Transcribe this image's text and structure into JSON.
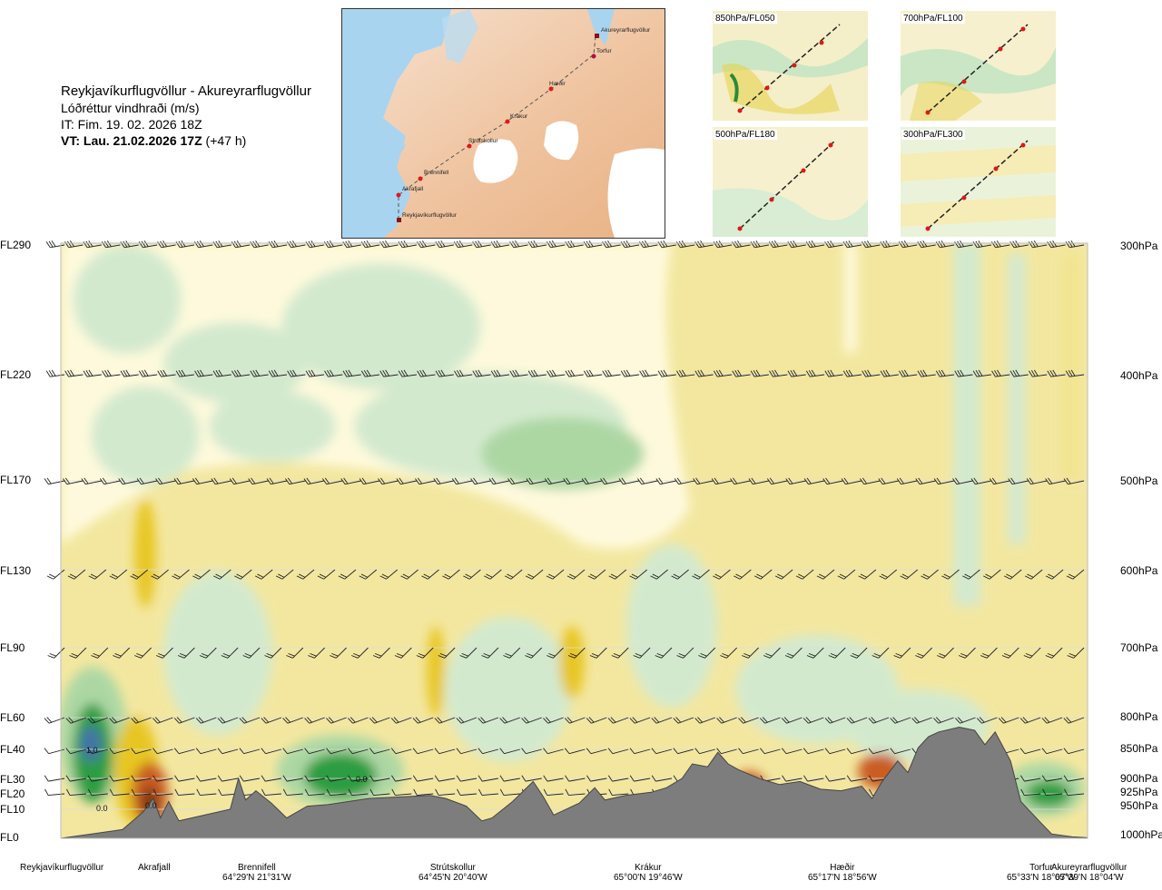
{
  "header": {
    "route": "Reykjavíkurflugvöllur - Akureyrarflugvöllur",
    "quantity": "Lóðréttur vindhraði (m/s)",
    "issue_time": "IT: Fim. 19. 02. 2026 18Z",
    "valid_time": "VT: Lau. 21.02.2026 17Z",
    "valid_offset": "(+47 h)"
  },
  "route_map": {
    "waypoints": [
      "Akureyrarflugvöllur",
      "Torfur",
      "Hæðir",
      "Krákur",
      "Strútskollur",
      "Brennifell",
      "Akrafjall",
      "Reykjavíkurflugvöllur"
    ]
  },
  "thumbnails": [
    {
      "label": "850hPa/FL050"
    },
    {
      "label": "700hPa/FL100"
    },
    {
      "label": "500hPa/FL180"
    },
    {
      "label": "300hPa/FL300"
    }
  ],
  "colors": {
    "strong_down": "#7a2e0e",
    "down_2": "#c7561c",
    "down_1": "#e7c51f",
    "down_weak": "#f0e48f",
    "neutral": "#fffbe0",
    "up_weak": "#d2ead1",
    "up_1": "#a9d7a4",
    "up_2": "#249a3c",
    "up_strong": "#3a6ea8",
    "terrain": "#7d7d7d"
  },
  "chart_data": {
    "type": "heatmap",
    "title": "Lóðréttur vindhraði (m/s)",
    "xlabel": "",
    "ylabel": "",
    "y_levels_left": [
      "FL290",
      "FL220",
      "FL170",
      "FL130",
      "FL90",
      "FL60",
      "FL40",
      "FL30",
      "FL20",
      "FL10",
      "FL0"
    ],
    "y_levels_right": [
      "300hPa",
      "400hPa",
      "500hPa",
      "600hPa",
      "700hPa",
      "800hPa",
      "850hPa",
      "900hPa",
      "925hPa",
      "950hPa",
      "1000hPa"
    ],
    "x_locations": [
      {
        "name": "Reykjavíkurflugvöllur",
        "coord": "",
        "x": 0.0
      },
      {
        "name": "Akrafjall",
        "coord": "",
        "x": 0.089
      },
      {
        "name": "Brennifell",
        "coord": "64°29'N 21°31'W",
        "x": 0.185
      },
      {
        "name": "Strútskollur",
        "coord": "64°45'N 20°40'W",
        "x": 0.379
      },
      {
        "name": "Krákur",
        "coord": "65°00'N 19°46'W",
        "x": 0.577
      },
      {
        "name": "Hæðir",
        "coord": "65°17'N 18°56'W",
        "x": 0.766
      },
      {
        "name": "Torfur",
        "coord": "65°33'N 18°07'W",
        "x": 0.935
      },
      {
        "name": "Akureyrarflugvöllur",
        "coord": "65°39'N 18°04'W",
        "x": 1.0
      }
    ],
    "annotations": [
      "1.0",
      "0.0",
      "0.0",
      "0.0"
    ],
    "terrain_profile_ft": [
      [
        0.0,
        0
      ],
      [
        0.03,
        150
      ],
      [
        0.06,
        300
      ],
      [
        0.08,
        900
      ],
      [
        0.09,
        1700
      ],
      [
        0.097,
        700
      ],
      [
        0.105,
        1500
      ],
      [
        0.115,
        600
      ],
      [
        0.14,
        800
      ],
      [
        0.165,
        1000
      ],
      [
        0.173,
        3000
      ],
      [
        0.18,
        1600
      ],
      [
        0.19,
        2200
      ],
      [
        0.205,
        1400
      ],
      [
        0.22,
        700
      ],
      [
        0.24,
        1200
      ],
      [
        0.26,
        1300
      ],
      [
        0.3,
        1700
      ],
      [
        0.33,
        1800
      ],
      [
        0.36,
        1900
      ],
      [
        0.375,
        1700
      ],
      [
        0.395,
        1200
      ],
      [
        0.41,
        600
      ],
      [
        0.42,
        700
      ],
      [
        0.44,
        1500
      ],
      [
        0.46,
        2800
      ],
      [
        0.47,
        1800
      ],
      [
        0.48,
        800
      ],
      [
        0.505,
        1400
      ],
      [
        0.52,
        2400
      ],
      [
        0.53,
        1600
      ],
      [
        0.55,
        1900
      ],
      [
        0.575,
        2100
      ],
      [
        0.59,
        2400
      ],
      [
        0.605,
        3000
      ],
      [
        0.615,
        3500
      ],
      [
        0.63,
        3400
      ],
      [
        0.64,
        3900
      ],
      [
        0.65,
        3500
      ],
      [
        0.66,
        3300
      ],
      [
        0.68,
        3000
      ],
      [
        0.7,
        2600
      ],
      [
        0.72,
        2800
      ],
      [
        0.74,
        2300
      ],
      [
        0.76,
        2200
      ],
      [
        0.78,
        2500
      ],
      [
        0.79,
        1700
      ],
      [
        0.8,
        2800
      ],
      [
        0.815,
        3600
      ],
      [
        0.825,
        3200
      ],
      [
        0.835,
        4100
      ],
      [
        0.845,
        4800
      ],
      [
        0.855,
        5100
      ],
      [
        0.875,
        5400
      ],
      [
        0.89,
        5200
      ],
      [
        0.9,
        4300
      ],
      [
        0.91,
        5100
      ],
      [
        0.925,
        3600
      ],
      [
        0.935,
        1500
      ],
      [
        0.95,
        700
      ],
      [
        0.965,
        150
      ],
      [
        0.985,
        50
      ],
      [
        1.0,
        20
      ]
    ]
  }
}
